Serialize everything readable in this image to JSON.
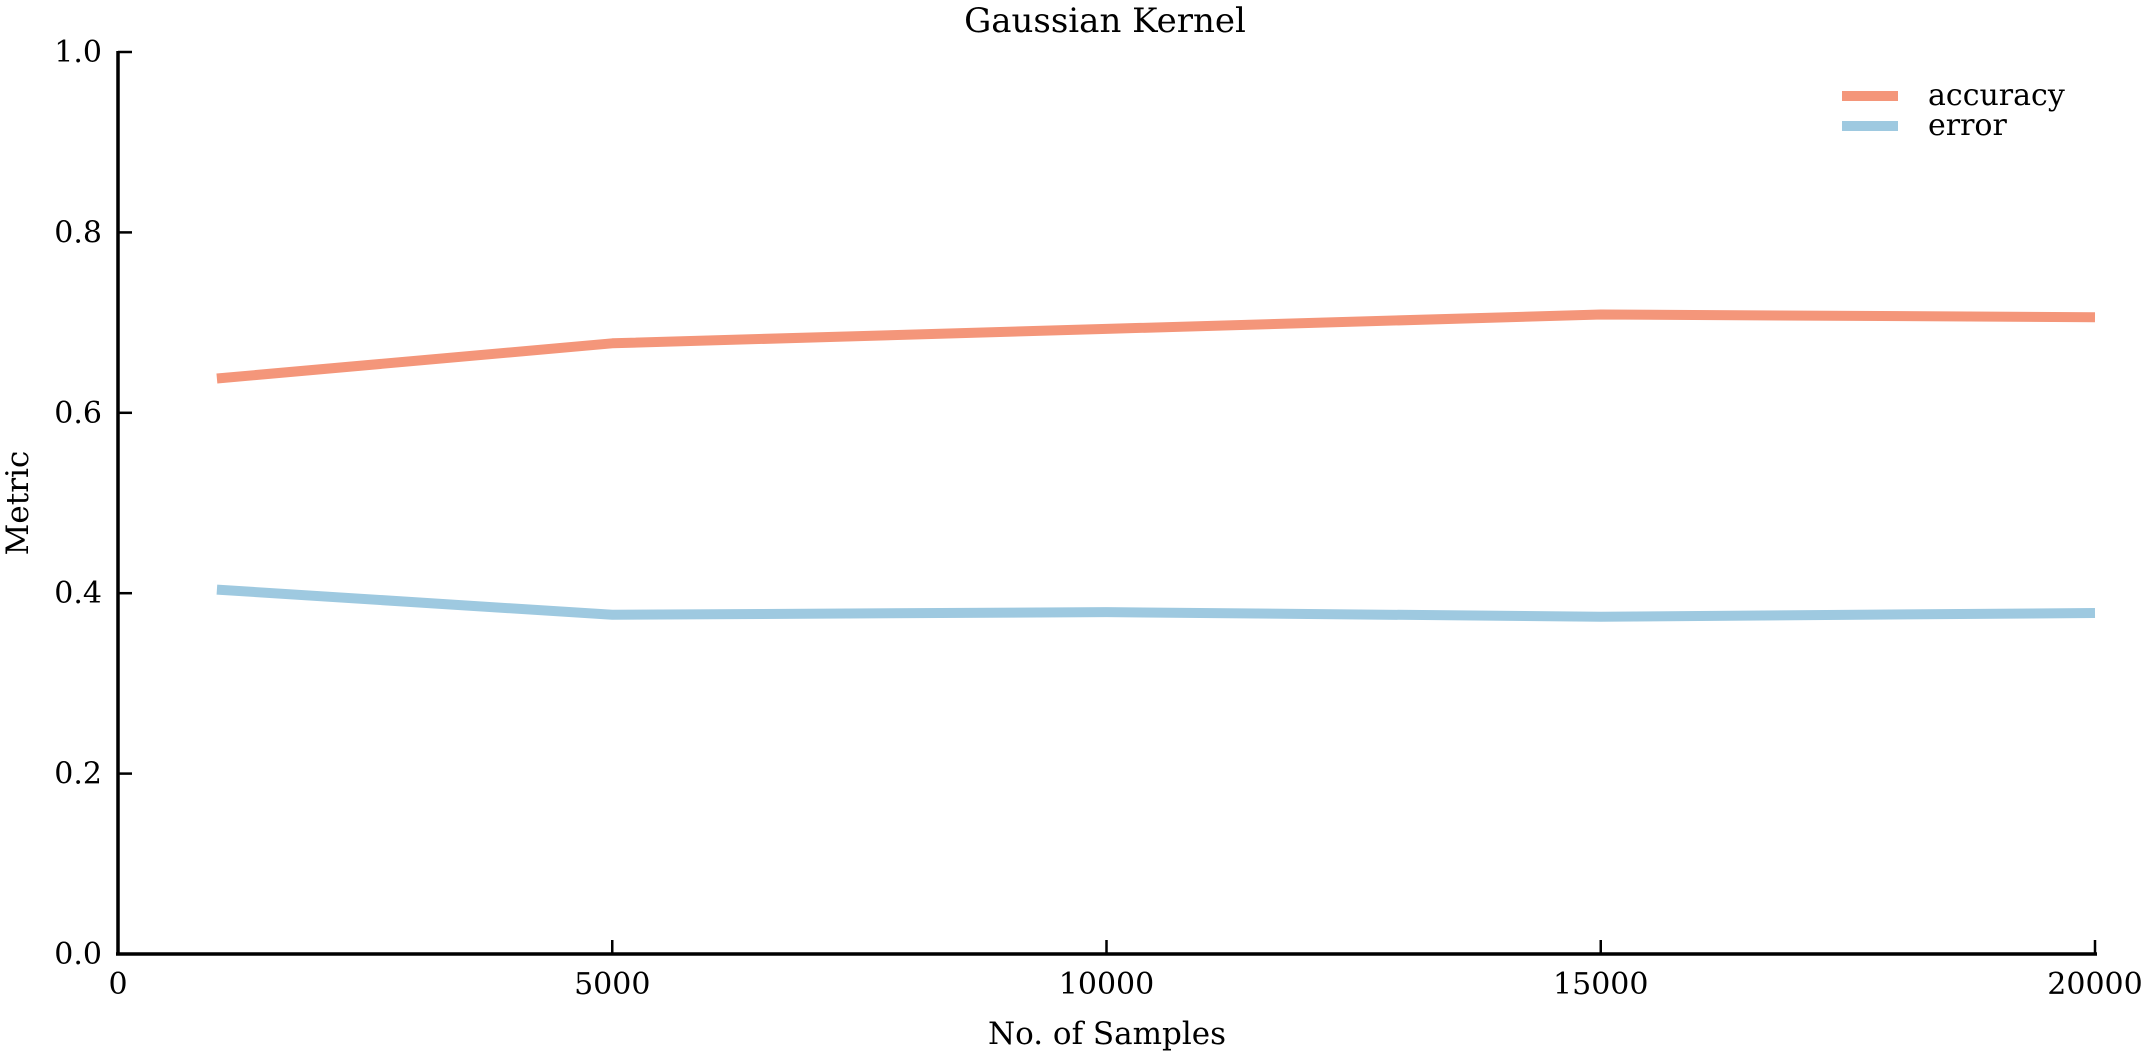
{
  "chart_data": {
    "type": "line",
    "title": "Gaussian Kernel",
    "xlabel": "No. of Samples",
    "ylabel": "Metric",
    "xlim": [
      0,
      20000
    ],
    "ylim": [
      0.0,
      1.0
    ],
    "x_ticks": [
      {
        "value": 0,
        "label": "0"
      },
      {
        "value": 5000,
        "label": "5000"
      },
      {
        "value": 10000,
        "label": "10000"
      },
      {
        "value": 15000,
        "label": "15000"
      },
      {
        "value": 20000,
        "label": "20000"
      }
    ],
    "y_ticks": [
      {
        "value": 0.0,
        "label": "0.0"
      },
      {
        "value": 0.2,
        "label": "0.2"
      },
      {
        "value": 0.4,
        "label": "0.4"
      },
      {
        "value": 0.6,
        "label": "0.6"
      },
      {
        "value": 0.8,
        "label": "0.8"
      },
      {
        "value": 1.0,
        "label": "1.0"
      }
    ],
    "grid": false,
    "legend_position": "top-right",
    "x": [
      1000,
      5000,
      10000,
      15000,
      20000
    ],
    "series": [
      {
        "name": "accuracy",
        "color": "#f4967a",
        "values": [
          0.638,
          0.677,
          0.693,
          0.709,
          0.706
        ]
      },
      {
        "name": "error",
        "color": "#9ec9e0",
        "values": [
          0.404,
          0.376,
          0.379,
          0.374,
          0.378
        ]
      }
    ]
  }
}
